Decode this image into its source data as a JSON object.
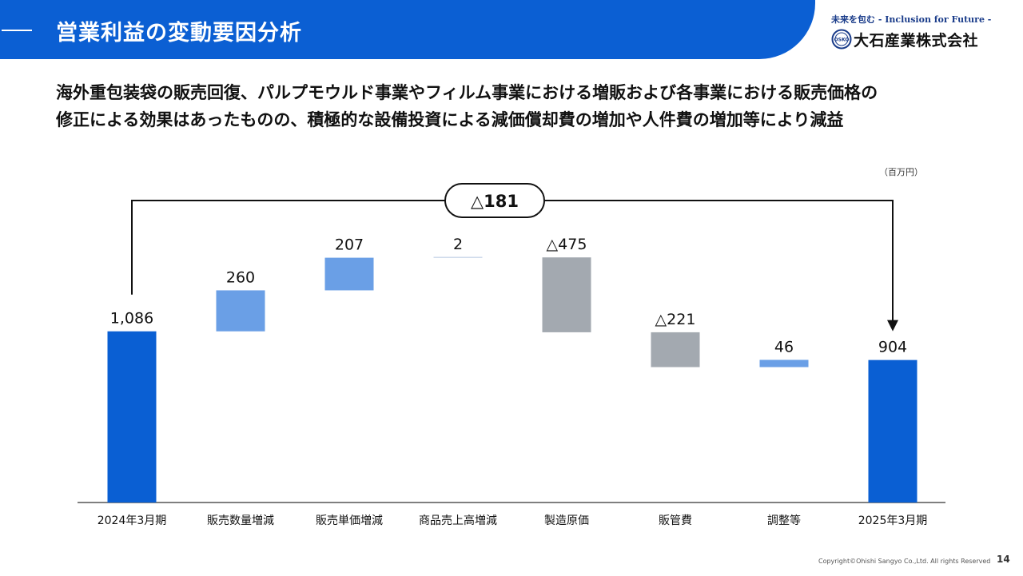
{
  "header": {
    "title": "営業利益の変動要因分析",
    "bar_color": "#0b5fd3"
  },
  "logo": {
    "tagline": "未来を包む - Inclusion for Future -",
    "company": "大石産業株式会社",
    "mark_text": "OSKO"
  },
  "headline": {
    "line1": "海外重包装袋の販売回復、パルプモウルド事業やフィルム事業における増販および各事業における販売価格の",
    "line2": "修正による効果はあったものの、積極的な設備投資による減価償却費の増加や人件費の増加等により減益"
  },
  "unit_label": "（百万円）",
  "chart_data": {
    "type": "bar",
    "subtype": "waterfall",
    "categories": [
      "2024年3月期",
      "販売数量増減",
      "販売単価増減",
      "商品売上高増減",
      "製造原価",
      "販管費",
      "調整等",
      "2025年3月期"
    ],
    "steps": [
      {
        "kind": "total",
        "value": 1086,
        "label": "1,086"
      },
      {
        "kind": "delta",
        "value": 260,
        "label": "260"
      },
      {
        "kind": "delta",
        "value": 207,
        "label": "207"
      },
      {
        "kind": "delta",
        "value": 2,
        "label": "2"
      },
      {
        "kind": "delta",
        "value": -475,
        "label": "△475"
      },
      {
        "kind": "delta",
        "value": -221,
        "label": "△221"
      },
      {
        "kind": "delta",
        "value": 46,
        "label": "46"
      },
      {
        "kind": "total",
        "value": 904,
        "label": "904"
      }
    ],
    "total_change": {
      "value": -181,
      "label": "△181"
    },
    "ylim": [
      0,
      1600
    ],
    "colors": {
      "total": "#0a5fd3",
      "increase": "#6a9fe6",
      "decrease": "#a3a9b0"
    },
    "grid": false,
    "legend": "none"
  },
  "footer": {
    "copyright": "Copyright©Ohishi Sangyo Co.,Ltd. All rights Reserved",
    "page_number": "14"
  }
}
